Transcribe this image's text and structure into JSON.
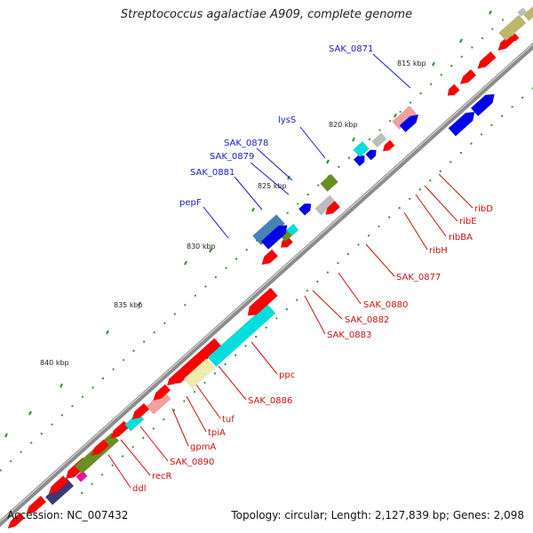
{
  "title": "Streptococcus agalactiae A909, complete genome",
  "footer": {
    "accession": "Accession: NC_007432",
    "summary": "Topology: circular; Length: 2,127,839 bp; Genes: 2,098"
  },
  "scale_labels": [
    "815 kbp",
    "820 kbp",
    "825 kbp",
    "830 kbp",
    "835 kbp",
    "840 kbp"
  ],
  "gene_labels_upper": [
    "SAK_0871",
    "lysS",
    "SAK_0878",
    "SAK_0879",
    "SAK_0881",
    "pepF"
  ],
  "gene_labels_lower": [
    "ribD",
    "ribE",
    "ribBA",
    "ribH",
    "SAK_0877",
    "SAK_0880",
    "SAK_0882",
    "SAK_0883",
    "ppc",
    "SAK_0886",
    "tuf",
    "tpiA",
    "gpmA",
    "SAK_0890",
    "recR",
    "ddl"
  ],
  "colors": {
    "upper_label": "#1a1acc",
    "lower_label": "#cc1111",
    "backbone": "#8c8c8c",
    "tick": "#2f8f2f",
    "feature_red": "#ff0000",
    "feature_blue": "#0000ee",
    "feature_navy": "#3a3a7a",
    "feature_olive": "#6b8e23",
    "feature_cyan": "#00dddd",
    "feature_yellow": "#eeeeaa",
    "feature_pink": "#f3a0a0",
    "feature_grey": "#bdbdbd",
    "feature_magenta": "#ee1199",
    "feature_steel": "#4682b4",
    "feature_khaki": "#bdb76b"
  }
}
